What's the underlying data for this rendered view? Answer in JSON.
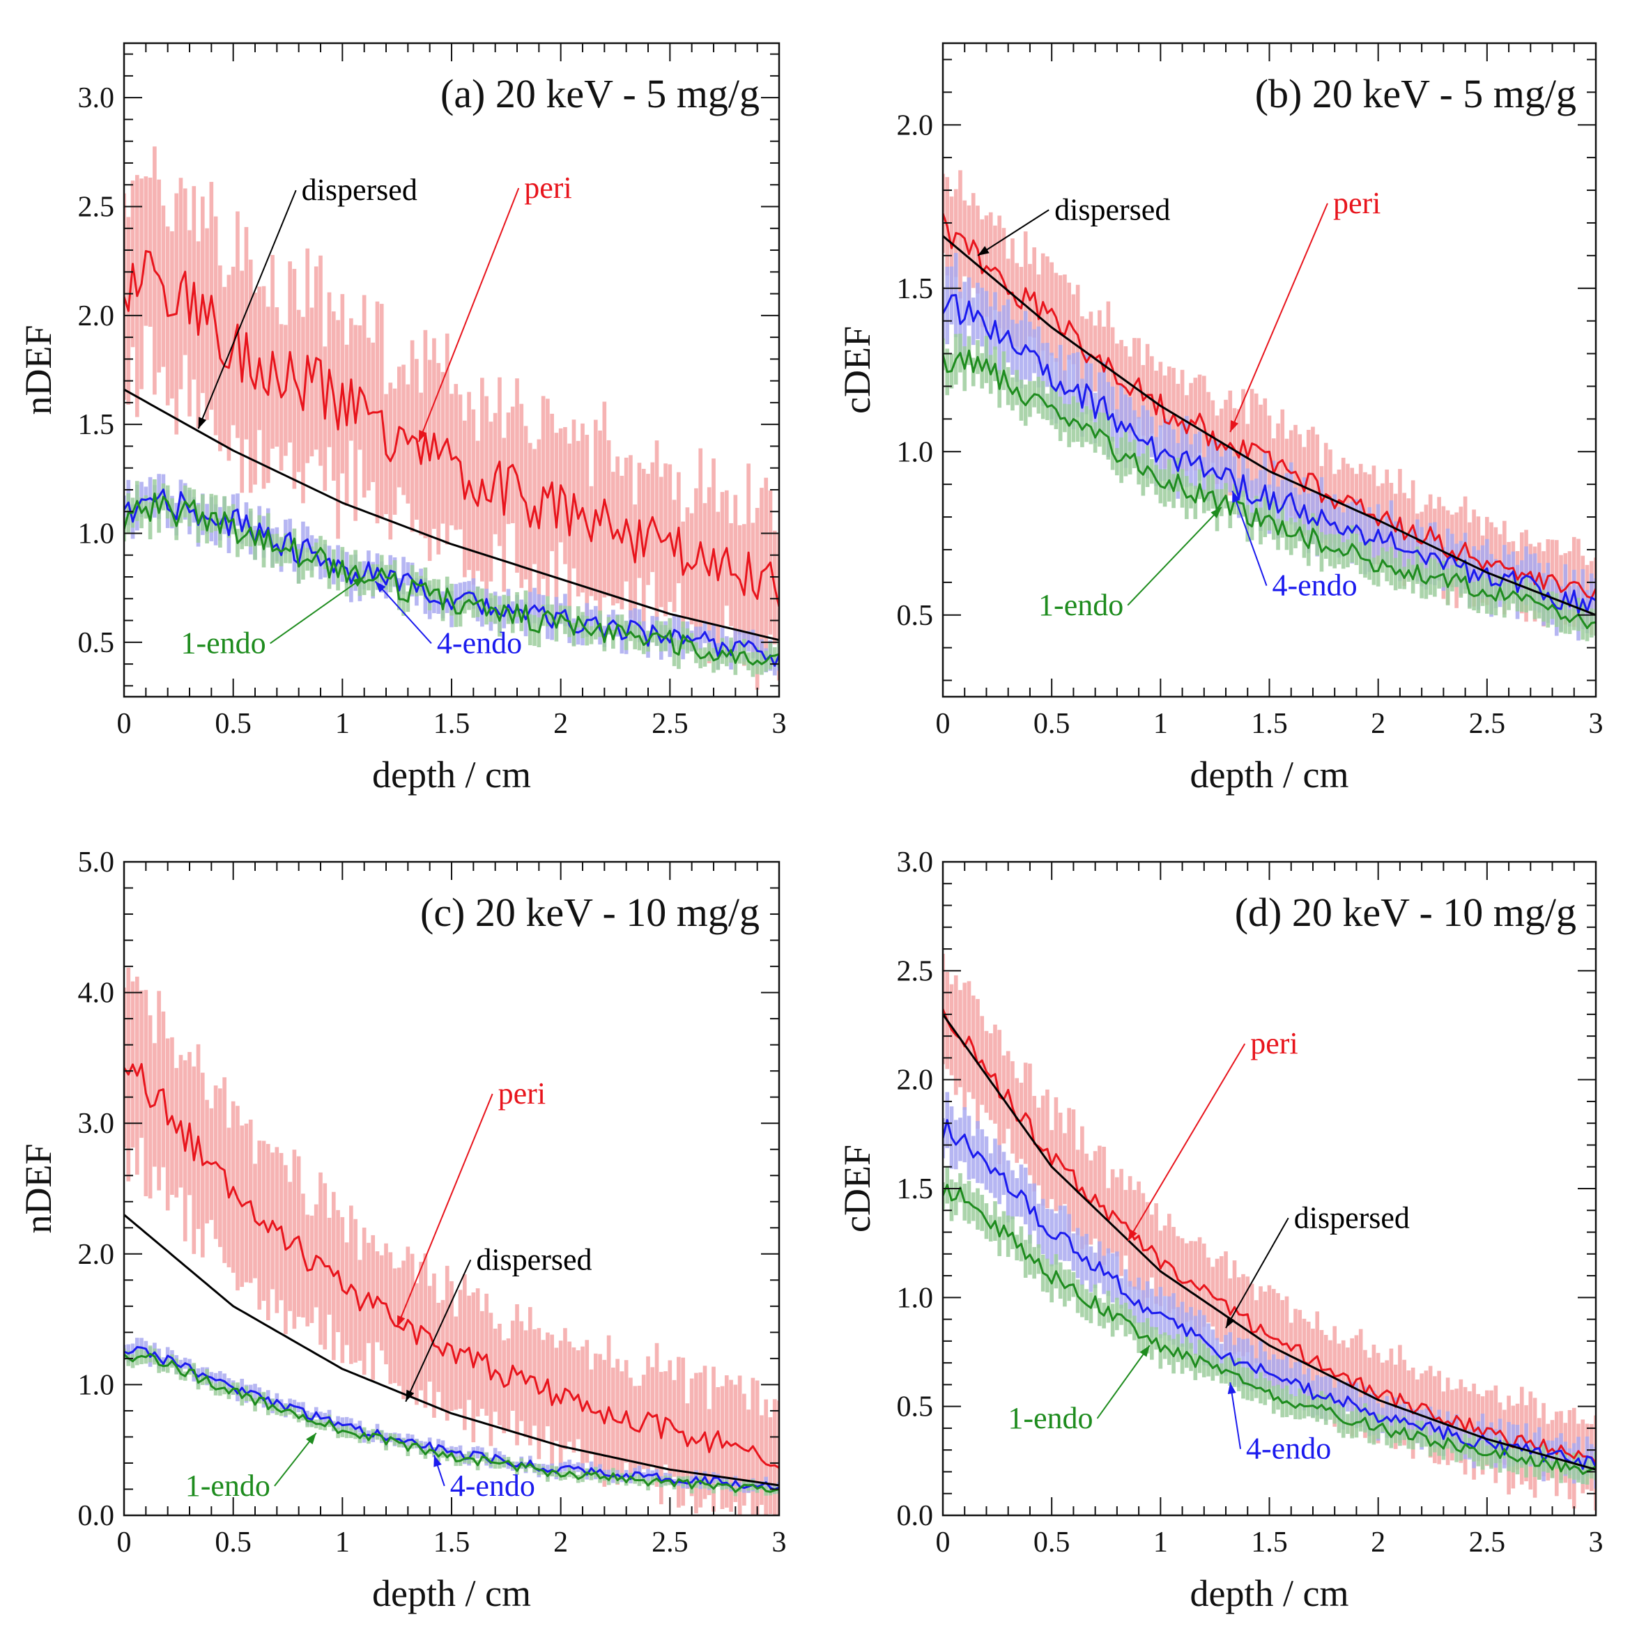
{
  "figure": {
    "xlabel": "depth / cm",
    "colors": {
      "dispersed": "#000000",
      "peri": "#e8141c",
      "endo4": "#1a1aee",
      "endo1": "#1e8c1e",
      "peri_band": "#f4a6a6",
      "endo4_band": "#a9a9f0",
      "endo1_band": "#9ccc9c"
    }
  },
  "chart_data": [
    {
      "type": "line",
      "id": "a",
      "title": "(a) 20 keV - 5 mg/g",
      "xlabel": "depth / cm",
      "ylabel": "nDEF",
      "xlim": [
        0,
        3
      ],
      "ylim": [
        0.25,
        3.25
      ],
      "xticks": [
        0,
        0.5,
        1,
        1.5,
        2,
        2.5,
        3
      ],
      "xtick_labels": [
        "0",
        "0.5",
        "1",
        "1.5",
        "2",
        "2.5",
        "3"
      ],
      "yticks": [
        0.5,
        1.0,
        1.5,
        2.0,
        2.5,
        3.0
      ],
      "ytick_labels": [
        "0.5",
        "1.0",
        "1.5",
        "2.0",
        "2.5",
        "3.0"
      ],
      "series": [
        {
          "name": "dispersed",
          "color": "#000000",
          "x": [
            0,
            0.5,
            1,
            1.5,
            2,
            2.5,
            3
          ],
          "y": [
            1.66,
            1.38,
            1.14,
            0.95,
            0.79,
            0.63,
            0.51
          ],
          "noise": 0.0,
          "band": 0.0
        },
        {
          "name": "peri",
          "color": "#e8141c",
          "x": [
            0,
            0.1,
            0.3,
            0.5,
            1.0,
            1.5,
            2.0,
            2.5,
            3.0
          ],
          "y": [
            2.08,
            2.25,
            2.05,
            1.86,
            1.6,
            1.3,
            1.1,
            0.93,
            0.75
          ],
          "noise": 0.16,
          "band": 0.45
        },
        {
          "name": "4-endo",
          "color": "#1a1aee",
          "x": [
            0,
            0.15,
            0.5,
            1.0,
            1.5,
            2.0,
            2.5,
            3.0
          ],
          "y": [
            1.07,
            1.15,
            1.05,
            0.84,
            0.7,
            0.6,
            0.52,
            0.44
          ],
          "noise": 0.07,
          "band": 0.08
        },
        {
          "name": "1-endo",
          "color": "#1e8c1e",
          "x": [
            0,
            0.15,
            0.5,
            1.0,
            1.5,
            2.0,
            2.5,
            3.0
          ],
          "y": [
            1.05,
            1.13,
            1.03,
            0.83,
            0.69,
            0.58,
            0.5,
            0.41
          ],
          "noise": 0.07,
          "band": 0.07
        }
      ],
      "annotations": [
        {
          "text": "dispersed",
          "series": "dispersed",
          "target": [
            0.34,
            1.48
          ],
          "label_at": [
            0.8,
            2.53
          ],
          "anchor": "start"
        },
        {
          "text": "peri",
          "series": "peri",
          "target": [
            1.35,
            1.42
          ],
          "label_at": [
            1.82,
            2.54
          ],
          "anchor": "start"
        },
        {
          "text": "1-endo",
          "series": "1-endo",
          "target": [
            1.1,
            0.8
          ],
          "label_at": [
            0.65,
            0.45
          ],
          "anchor": "end"
        },
        {
          "text": "4-endo",
          "series": "4-endo",
          "target": [
            1.15,
            0.78
          ],
          "label_at": [
            1.42,
            0.45
          ],
          "anchor": "start"
        }
      ]
    },
    {
      "type": "line",
      "id": "b",
      "title": "(b) 20 keV - 5 mg/g",
      "xlabel": "depth / cm",
      "ylabel": "cDEF",
      "xlim": [
        0,
        3
      ],
      "ylim": [
        0.25,
        2.25
      ],
      "xticks": [
        0,
        0.5,
        1,
        1.5,
        2,
        2.5,
        3
      ],
      "xtick_labels": [
        "0",
        "0.5",
        "1",
        "1.5",
        "2",
        "2.5",
        "3"
      ],
      "yticks": [
        0.5,
        1.0,
        1.5,
        2.0
      ],
      "ytick_labels": [
        "0.5",
        "1.0",
        "1.5",
        "2.0"
      ],
      "series": [
        {
          "name": "dispersed",
          "color": "#000000",
          "x": [
            0,
            0.5,
            1,
            1.5,
            2,
            2.5,
            3
          ],
          "y": [
            1.66,
            1.38,
            1.14,
            0.94,
            0.79,
            0.63,
            0.5
          ],
          "noise": 0.0,
          "band": 0.0
        },
        {
          "name": "peri",
          "color": "#e8141c",
          "x": [
            0,
            0.5,
            1.0,
            1.5,
            2.0,
            2.5,
            3.0
          ],
          "y": [
            1.68,
            1.4,
            1.14,
            0.96,
            0.8,
            0.66,
            0.55
          ],
          "noise": 0.05,
          "band": 0.16
        },
        {
          "name": "4-endo",
          "color": "#1a1aee",
          "x": [
            0,
            0.1,
            0.5,
            1.0,
            1.5,
            2.0,
            2.5,
            3.0
          ],
          "y": [
            1.42,
            1.44,
            1.24,
            1.0,
            0.86,
            0.73,
            0.62,
            0.52
          ],
          "noise": 0.05,
          "band": 0.1
        },
        {
          "name": "1-endo",
          "color": "#1e8c1e",
          "x": [
            0,
            0.1,
            0.5,
            1.0,
            1.5,
            2.0,
            2.5,
            3.0
          ],
          "y": [
            1.27,
            1.29,
            1.12,
            0.92,
            0.78,
            0.66,
            0.57,
            0.48
          ],
          "noise": 0.04,
          "band": 0.06
        }
      ],
      "annotations": [
        {
          "text": "dispersed",
          "series": "dispersed",
          "target": [
            0.16,
            1.6
          ],
          "label_at": [
            0.5,
            1.71
          ],
          "anchor": "start"
        },
        {
          "text": "peri",
          "series": "peri",
          "target": [
            1.32,
            1.06
          ],
          "label_at": [
            1.78,
            1.73
          ],
          "anchor": "start"
        },
        {
          "text": "1-endo",
          "series": "1-endo",
          "target": [
            1.28,
            0.83
          ],
          "label_at": [
            0.83,
            0.5
          ],
          "anchor": "end"
        },
        {
          "text": "4-endo",
          "series": "4-endo",
          "target": [
            1.33,
            0.88
          ],
          "label_at": [
            1.5,
            0.56
          ],
          "anchor": "start"
        }
      ]
    },
    {
      "type": "line",
      "id": "c",
      "title": "(c) 20 keV - 10 mg/g",
      "xlabel": "depth / cm",
      "ylabel": "nDEF",
      "xlim": [
        0,
        3
      ],
      "ylim": [
        0,
        5.0
      ],
      "xticks": [
        0,
        0.5,
        1,
        1.5,
        2,
        2.5,
        3
      ],
      "xtick_labels": [
        "0",
        "0.5",
        "1",
        "1.5",
        "2",
        "2.5",
        "3"
      ],
      "yticks": [
        0.0,
        1.0,
        2.0,
        3.0,
        4.0,
        5.0
      ],
      "ytick_labels": [
        "0.0",
        "1.0",
        "2.0",
        "3.0",
        "4.0",
        "5.0"
      ],
      "series": [
        {
          "name": "dispersed",
          "color": "#000000",
          "x": [
            0,
            0.5,
            1,
            1.5,
            2,
            2.5,
            3
          ],
          "y": [
            2.3,
            1.6,
            1.12,
            0.78,
            0.53,
            0.35,
            0.23
          ],
          "noise": 0.0,
          "band": 0.0
        },
        {
          "name": "peri",
          "color": "#e8141c",
          "x": [
            0,
            0.1,
            0.5,
            1.0,
            1.5,
            2.0,
            2.5,
            3.0
          ],
          "y": [
            3.42,
            3.3,
            2.45,
            1.75,
            1.25,
            0.9,
            0.65,
            0.45
          ],
          "noise": 0.14,
          "band": 0.65
        },
        {
          "name": "4-endo",
          "color": "#1a1aee",
          "x": [
            0,
            0.1,
            0.5,
            1.0,
            1.5,
            2.0,
            2.5,
            3.0
          ],
          "y": [
            1.25,
            1.26,
            0.98,
            0.68,
            0.48,
            0.35,
            0.28,
            0.22
          ],
          "noise": 0.05,
          "band": 0.06
        },
        {
          "name": "1-endo",
          "color": "#1e8c1e",
          "x": [
            0,
            0.1,
            0.5,
            1.0,
            1.5,
            2.0,
            2.5,
            3.0
          ],
          "y": [
            1.2,
            1.22,
            0.94,
            0.65,
            0.45,
            0.32,
            0.25,
            0.19
          ],
          "noise": 0.05,
          "band": 0.05
        }
      ],
      "annotations": [
        {
          "text": "peri",
          "series": "peri",
          "target": [
            1.25,
            1.44
          ],
          "label_at": [
            1.7,
            3.15
          ],
          "anchor": "start"
        },
        {
          "text": "dispersed",
          "series": "dispersed",
          "target": [
            1.29,
            0.87
          ],
          "label_at": [
            1.6,
            1.88
          ],
          "anchor": "start"
        },
        {
          "text": "1-endo",
          "series": "1-endo",
          "target": [
            0.88,
            0.63
          ],
          "label_at": [
            0.67,
            0.15
          ],
          "anchor": "end"
        },
        {
          "text": "4-endo",
          "series": "4-endo",
          "target": [
            1.42,
            0.46
          ],
          "label_at": [
            1.48,
            0.15
          ],
          "anchor": "start"
        }
      ]
    },
    {
      "type": "line",
      "id": "d",
      "title": "(d) 20 keV - 10 mg/g",
      "xlabel": "depth / cm",
      "ylabel": "cDEF",
      "xlim": [
        0,
        3
      ],
      "ylim": [
        0,
        3.0
      ],
      "xticks": [
        0,
        0.5,
        1,
        1.5,
        2,
        2.5,
        3
      ],
      "xtick_labels": [
        "0",
        "0.5",
        "1",
        "1.5",
        "2",
        "2.5",
        "3"
      ],
      "yticks": [
        0.0,
        0.5,
        1.0,
        1.5,
        2.0,
        2.5,
        3.0
      ],
      "ytick_labels": [
        "0.0",
        "0.5",
        "1.0",
        "1.5",
        "2.0",
        "2.5",
        "3.0"
      ],
      "series": [
        {
          "name": "dispersed",
          "color": "#000000",
          "x": [
            0,
            0.5,
            1,
            1.5,
            2,
            2.5,
            3
          ],
          "y": [
            2.3,
            1.6,
            1.12,
            0.78,
            0.53,
            0.35,
            0.21
          ],
          "noise": 0.0,
          "band": 0.0
        },
        {
          "name": "peri",
          "color": "#e8141c",
          "x": [
            0,
            0.5,
            1.0,
            1.5,
            2.0,
            2.5,
            3.0
          ],
          "y": [
            2.32,
            1.64,
            1.16,
            0.82,
            0.56,
            0.38,
            0.25
          ],
          "noise": 0.05,
          "band": 0.26
        },
        {
          "name": "4-endo",
          "color": "#1a1aee",
          "x": [
            0,
            0.1,
            0.5,
            1.0,
            1.5,
            2.0,
            2.5,
            3.0
          ],
          "y": [
            1.78,
            1.72,
            1.3,
            0.9,
            0.64,
            0.46,
            0.33,
            0.23
          ],
          "noise": 0.05,
          "band": 0.12
        },
        {
          "name": "1-endo",
          "color": "#1e8c1e",
          "x": [
            0,
            0.1,
            0.5,
            1.0,
            1.5,
            2.0,
            2.5,
            3.0
          ],
          "y": [
            1.5,
            1.46,
            1.1,
            0.78,
            0.56,
            0.4,
            0.29,
            0.2
          ],
          "noise": 0.04,
          "band": 0.08
        }
      ],
      "annotations": [
        {
          "text": "peri",
          "series": "peri",
          "target": [
            0.85,
            1.26
          ],
          "label_at": [
            1.4,
            2.12
          ],
          "anchor": "start"
        },
        {
          "text": "dispersed",
          "series": "dispersed",
          "target": [
            1.3,
            0.86
          ],
          "label_at": [
            1.6,
            1.32
          ],
          "anchor": "start"
        },
        {
          "text": "1-endo",
          "series": "1-endo",
          "target": [
            0.95,
            0.78
          ],
          "label_at": [
            0.69,
            0.4
          ],
          "anchor": "end"
        },
        {
          "text": "4-endo",
          "series": "4-endo",
          "target": [
            1.32,
            0.61
          ],
          "label_at": [
            1.38,
            0.26
          ],
          "anchor": "start"
        }
      ]
    }
  ]
}
